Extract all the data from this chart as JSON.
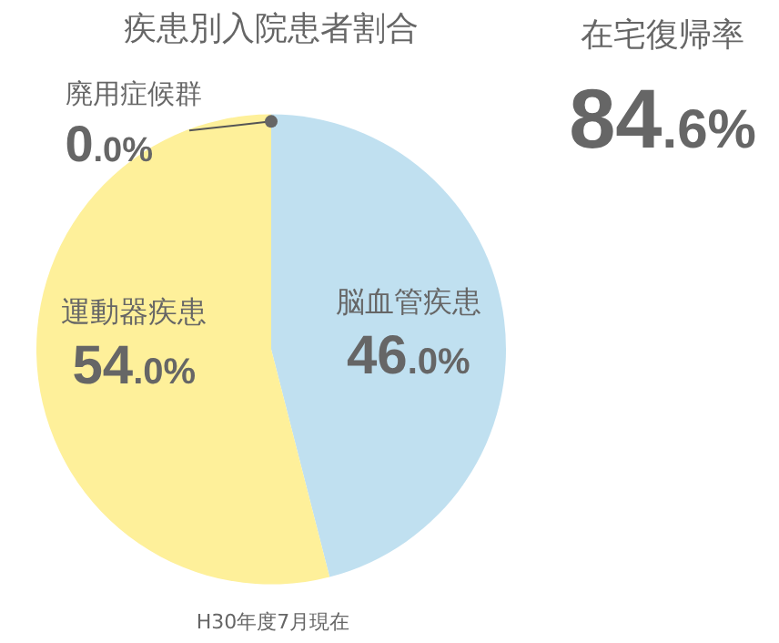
{
  "chart_data": [
    {
      "type": "pie",
      "title": "疾患別入院患者割合",
      "categories": [
        "脳血管疾患",
        "運動器疾患",
        "廃用症候群"
      ],
      "values": [
        46.0,
        54.0,
        0.0
      ],
      "colors": [
        "#c0e0f0",
        "#fef09a",
        "#fef09a"
      ],
      "value_labels": [
        "46.0%",
        "54.0%",
        "0.0%"
      ],
      "legend": false,
      "annotations": [
        "H30年度7月現在"
      ]
    },
    {
      "type": "other",
      "title": "在宅復帰率",
      "annotations": [
        "84.6%"
      ]
    }
  ]
}
